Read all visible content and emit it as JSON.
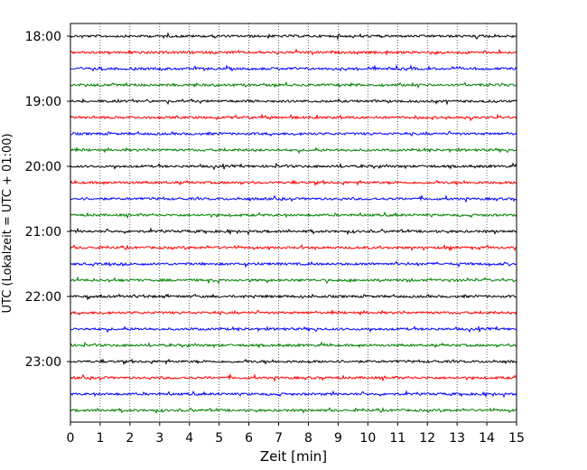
{
  "chart_data": {
    "type": "line",
    "title": "",
    "xlabel": "Zeit  [min]",
    "ylabel": "UTC (Lokalzeit = UTC + 01:00)",
    "xlim": [
      0,
      15
    ],
    "x_ticks": [
      "0",
      "1",
      "2",
      "3",
      "4",
      "5",
      "6",
      "7",
      "8",
      "9",
      "10",
      "11",
      "12",
      "13",
      "14",
      "15"
    ],
    "y_ticks": [
      "18:00",
      "19:00",
      "20:00",
      "21:00",
      "22:00",
      "23:00"
    ],
    "grid_x": true,
    "colors_cycle": [
      "#000000",
      "#ff0000",
      "#0000ff",
      "#008000"
    ],
    "rows": [
      {
        "start": "18:00"
      },
      {
        "start": "18:15"
      },
      {
        "start": "18:30"
      },
      {
        "start": "18:45"
      },
      {
        "start": "19:00"
      },
      {
        "start": "19:15"
      },
      {
        "start": "19:30"
      },
      {
        "start": "19:45"
      },
      {
        "start": "20:00"
      },
      {
        "start": "20:15"
      },
      {
        "start": "20:30"
      },
      {
        "start": "20:45"
      },
      {
        "start": "21:00"
      },
      {
        "start": "21:15"
      },
      {
        "start": "21:30"
      },
      {
        "start": "21:45"
      },
      {
        "start": "22:00"
      },
      {
        "start": "22:15"
      },
      {
        "start": "22:30"
      },
      {
        "start": "22:45"
      },
      {
        "start": "23:00"
      },
      {
        "start": "23:15"
      },
      {
        "start": "23:30"
      },
      {
        "start": "23:45"
      }
    ]
  }
}
